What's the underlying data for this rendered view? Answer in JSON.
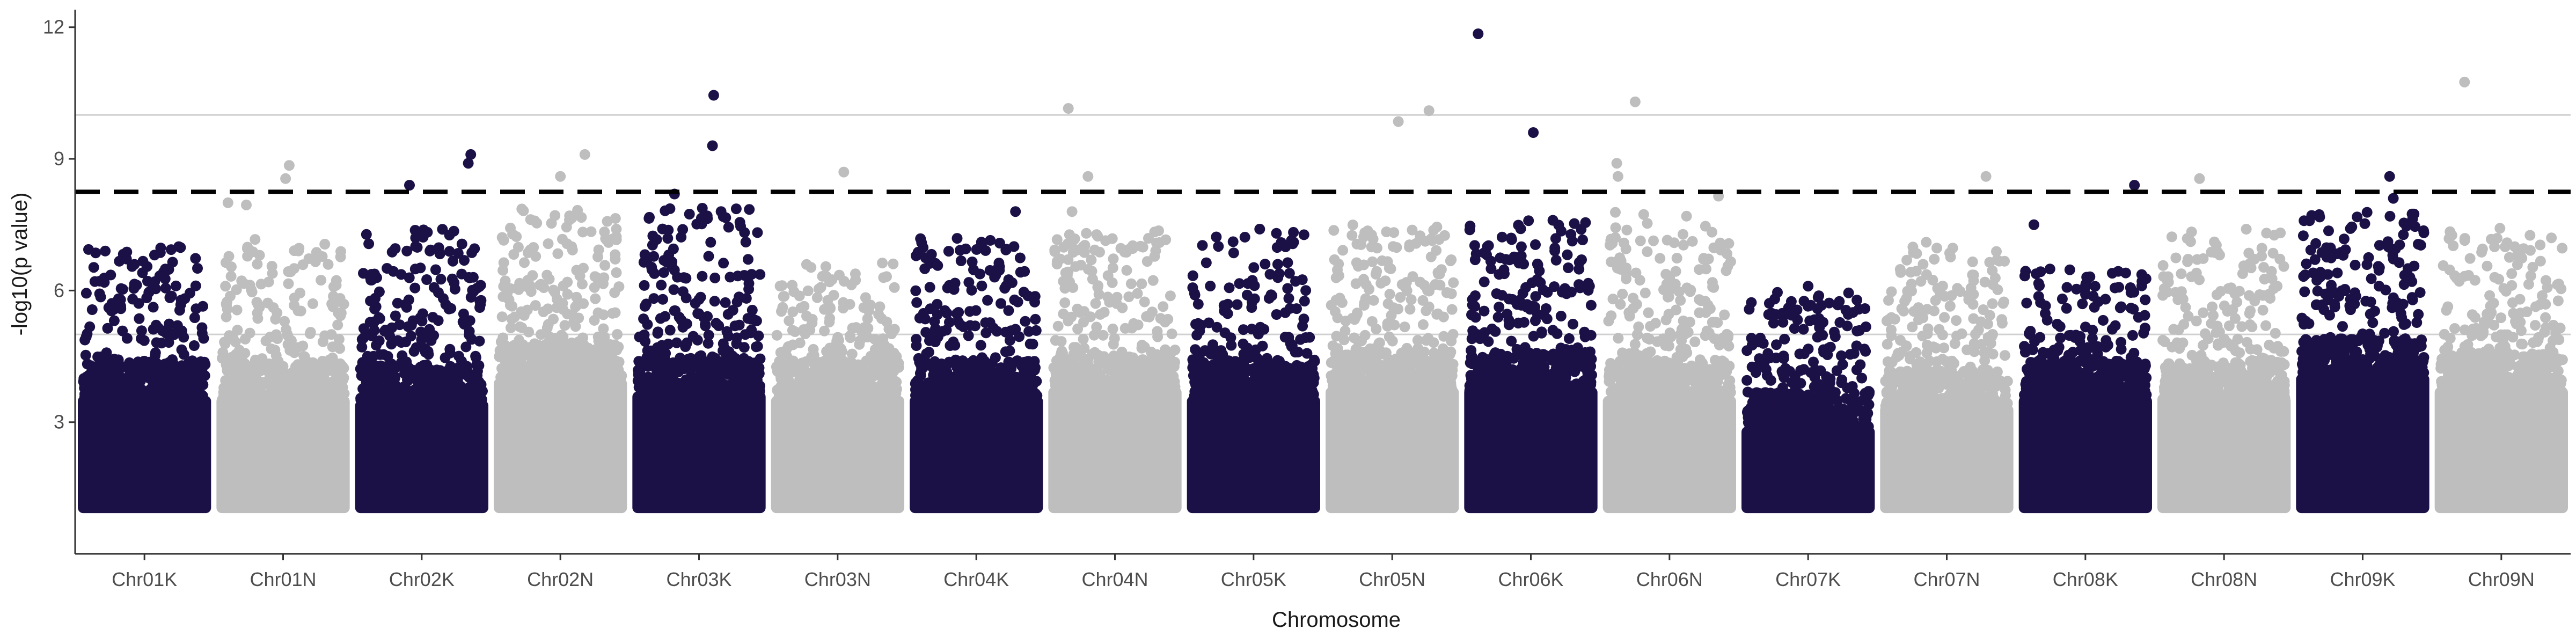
{
  "chart_data": {
    "type": "scatter",
    "subtype": "manhattan",
    "title": "",
    "xlabel": "Chromosome",
    "ylabel": "-log10(p value)",
    "ylim": [
      0,
      12.4
    ],
    "yticks": [
      3,
      6,
      9,
      12
    ],
    "grid": false,
    "legend": "none",
    "reference_lines": [
      {
        "y": 5.0,
        "style": "solid",
        "color": "#d0d0d0"
      },
      {
        "y": 10.0,
        "style": "solid",
        "color": "#d0d0d0"
      },
      {
        "y": 8.25,
        "style": "dashed",
        "color": "#000000"
      }
    ],
    "colors": {
      "odd": "#1c1146",
      "even": "#bebebe"
    },
    "chromosomes": [
      {
        "name": "Chr01K",
        "base_top": 3.6,
        "spike_max": 7.0,
        "notable": [
          {
            "pos": 0.18,
            "y": 6.9
          },
          {
            "pos": 0.78,
            "y": 7.0
          }
        ]
      },
      {
        "name": "Chr01N",
        "base_top": 3.6,
        "spike_max": 7.2,
        "notable": [
          {
            "pos": 0.05,
            "y": 8.0
          },
          {
            "pos": 0.2,
            "y": 7.95
          },
          {
            "pos": 0.55,
            "y": 8.85
          },
          {
            "pos": 0.52,
            "y": 8.55
          }
        ]
      },
      {
        "name": "Chr02K",
        "base_top": 3.5,
        "spike_max": 7.4,
        "notable": [
          {
            "pos": 0.4,
            "y": 8.4
          },
          {
            "pos": 0.45,
            "y": 7.2
          },
          {
            "pos": 0.9,
            "y": 9.1
          },
          {
            "pos": 0.88,
            "y": 8.9
          }
        ]
      },
      {
        "name": "Chr02N",
        "base_top": 4.0,
        "spike_max": 7.9,
        "notable": [
          {
            "pos": 0.7,
            "y": 9.1
          },
          {
            "pos": 0.5,
            "y": 8.6
          }
        ]
      },
      {
        "name": "Chr03K",
        "base_top": 3.7,
        "spike_max": 7.9,
        "notable": [
          {
            "pos": 0.62,
            "y": 10.45
          },
          {
            "pos": 0.61,
            "y": 9.3
          },
          {
            "pos": 0.3,
            "y": 8.2
          },
          {
            "pos": 0.68,
            "y": 7.8
          }
        ]
      },
      {
        "name": "Chr03N",
        "base_top": 3.6,
        "spike_max": 6.7,
        "notable": [
          {
            "pos": 0.55,
            "y": 8.7
          }
        ]
      },
      {
        "name": "Chr04K",
        "base_top": 3.6,
        "spike_max": 7.2,
        "notable": [
          {
            "pos": 0.82,
            "y": 7.8
          }
        ]
      },
      {
        "name": "Chr04N",
        "base_top": 3.8,
        "spike_max": 7.4,
        "notable": [
          {
            "pos": 0.12,
            "y": 10.15
          },
          {
            "pos": 0.28,
            "y": 8.6
          },
          {
            "pos": 0.15,
            "y": 7.8
          }
        ]
      },
      {
        "name": "Chr05K",
        "base_top": 3.6,
        "spike_max": 7.4,
        "notable": [
          {
            "pos": 0.55,
            "y": 7.4
          }
        ]
      },
      {
        "name": "Chr05N",
        "base_top": 3.8,
        "spike_max": 7.5,
        "notable": [
          {
            "pos": 0.55,
            "y": 9.85
          },
          {
            "pos": 0.8,
            "y": 10.1
          }
        ]
      },
      {
        "name": "Chr06K",
        "base_top": 3.8,
        "spike_max": 7.6,
        "notable": [
          {
            "pos": 0.07,
            "y": 11.85
          },
          {
            "pos": 0.52,
            "y": 9.6
          },
          {
            "pos": 0.68,
            "y": 7.6
          }
        ]
      },
      {
        "name": "Chr06N",
        "base_top": 3.6,
        "spike_max": 7.9,
        "notable": [
          {
            "pos": 0.22,
            "y": 10.3
          },
          {
            "pos": 0.07,
            "y": 8.9
          },
          {
            "pos": 0.08,
            "y": 8.6
          },
          {
            "pos": 0.9,
            "y": 8.15
          }
        ]
      },
      {
        "name": "Chr07K",
        "base_top": 2.9,
        "spike_max": 6.0,
        "notable": [
          {
            "pos": 0.5,
            "y": 6.1
          }
        ]
      },
      {
        "name": "Chr07N",
        "base_top": 3.4,
        "spike_max": 7.2,
        "notable": [
          {
            "pos": 0.82,
            "y": 8.6
          }
        ]
      },
      {
        "name": "Chr08K",
        "base_top": 3.6,
        "spike_max": 6.5,
        "notable": [
          {
            "pos": 0.08,
            "y": 7.5
          },
          {
            "pos": 0.9,
            "y": 8.4
          }
        ]
      },
      {
        "name": "Chr08N",
        "base_top": 3.6,
        "spike_max": 7.4,
        "notable": [
          {
            "pos": 0.3,
            "y": 8.55
          }
        ]
      },
      {
        "name": "Chr09K",
        "base_top": 4.1,
        "spike_max": 7.8,
        "notable": [
          {
            "pos": 0.72,
            "y": 8.6
          },
          {
            "pos": 0.75,
            "y": 8.1
          }
        ]
      },
      {
        "name": "Chr09N",
        "base_top": 3.8,
        "spike_max": 7.5,
        "notable": [
          {
            "pos": 0.2,
            "y": 10.75
          }
        ]
      }
    ]
  }
}
